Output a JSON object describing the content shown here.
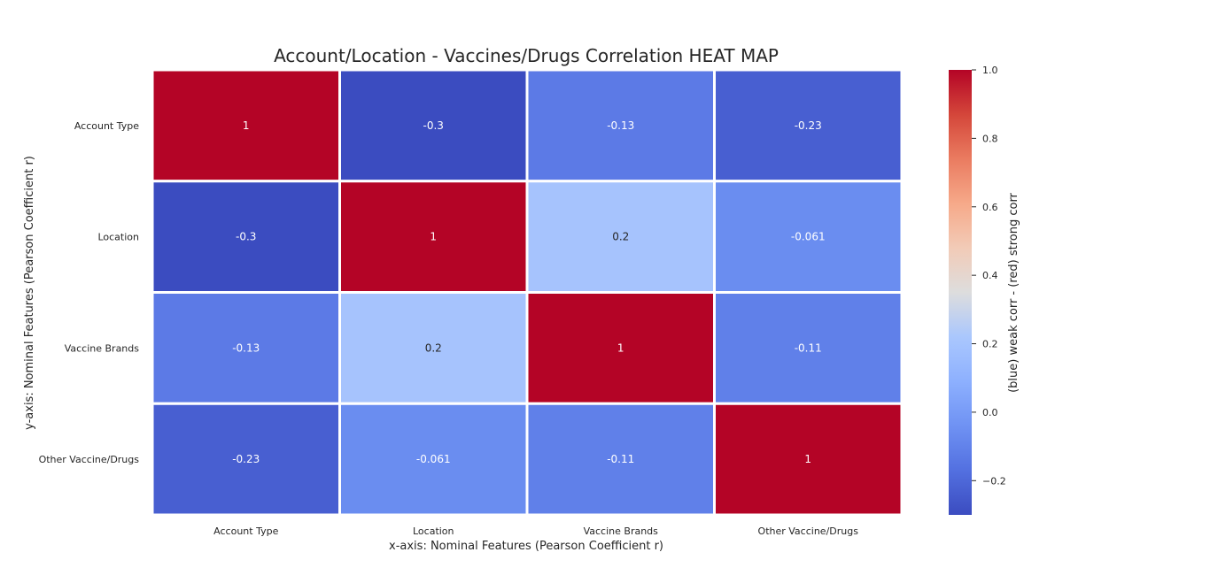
{
  "chart_data": {
    "type": "heatmap",
    "title": "Account/Location - Vaccines/Drugs Correlation HEAT MAP",
    "xlabel": "x-axis: Nominal Features (Pearson Coefficient r)",
    "ylabel": "y-axis: Nominal Features (Pearson Coefficient r)",
    "x_categories": [
      "Account Type",
      "Location",
      "Vaccine Brands",
      "Other Vaccine/Drugs"
    ],
    "y_categories": [
      "Account Type",
      "Location",
      "Vaccine Brands",
      "Other Vaccine/Drugs"
    ],
    "matrix": [
      [
        1,
        -0.3,
        -0.13,
        -0.23
      ],
      [
        -0.3,
        1,
        0.2,
        -0.061
      ],
      [
        -0.13,
        0.2,
        1,
        -0.11
      ],
      [
        -0.23,
        -0.061,
        -0.11,
        1
      ]
    ],
    "annotations": [
      [
        "1",
        "-0.3",
        "-0.13",
        "-0.23"
      ],
      [
        "-0.3",
        "1",
        "0.2",
        "-0.061"
      ],
      [
        "-0.13",
        "0.2",
        "1",
        "-0.11"
      ],
      [
        "-0.23",
        "-0.061",
        "-0.11",
        "1"
      ]
    ],
    "colormap": "coolwarm",
    "vmin": -0.3,
    "vmax": 1.0,
    "colorbar": {
      "label": "(blue) weak corr - (red) strong corr",
      "ticks": [
        1.0,
        0.8,
        0.6,
        0.4,
        0.2,
        0.0,
        -0.2
      ],
      "tick_labels": [
        "1.0",
        "0.8",
        "0.6",
        "0.4",
        "0.2",
        "0.0",
        "−0.2"
      ],
      "position": "right"
    },
    "colors": {
      "blue_end": "#3b4cc0",
      "mid": "#dddddd",
      "red_end": "#b40426"
    }
  }
}
